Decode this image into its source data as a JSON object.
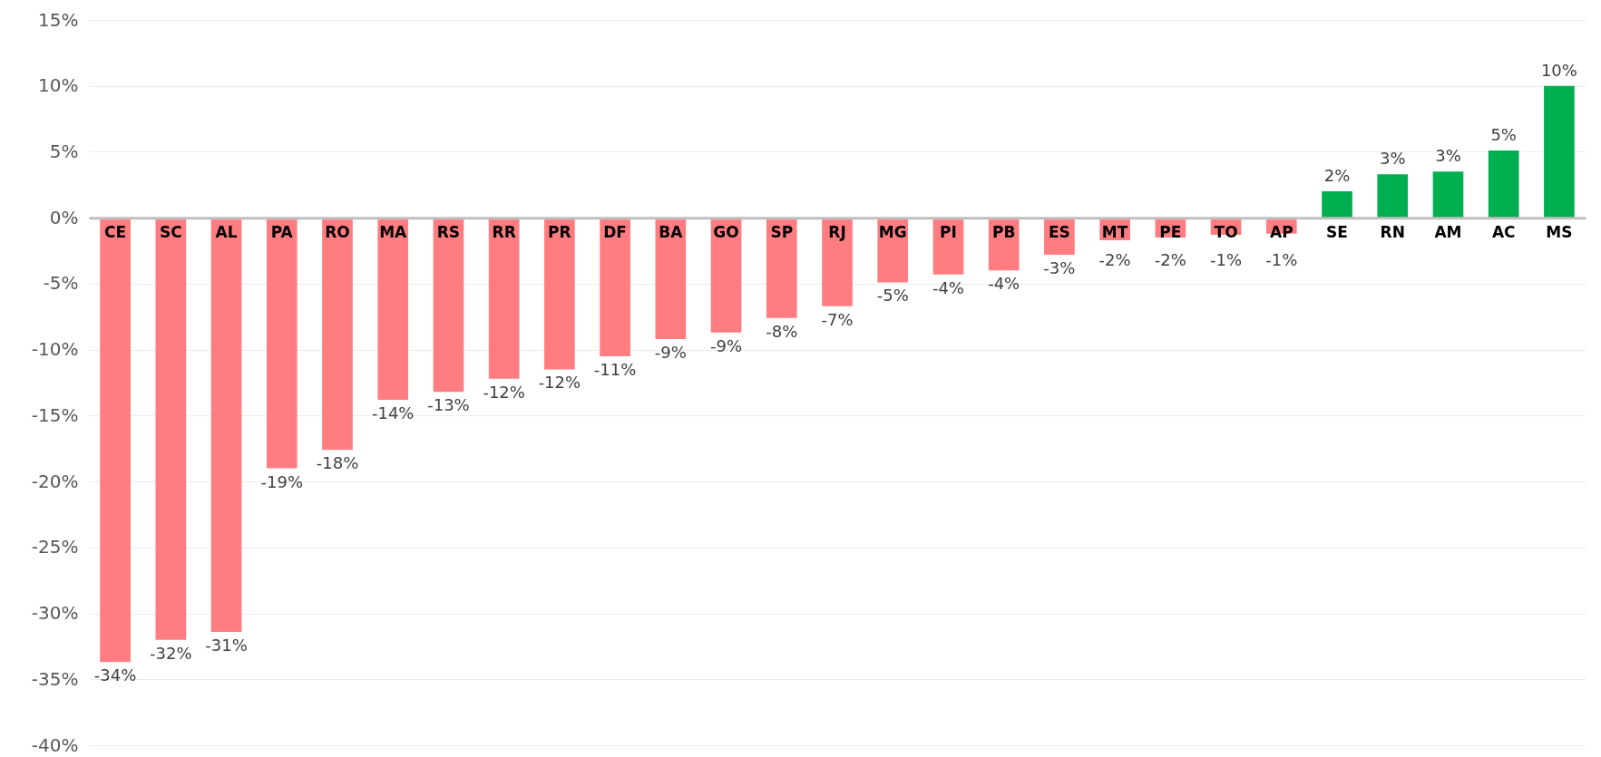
{
  "chart_data": {
    "type": "bar",
    "categories": [
      "CE",
      "SC",
      "AL",
      "PA",
      "RO",
      "MA",
      "RS",
      "RR",
      "PR",
      "DF",
      "BA",
      "GO",
      "SP",
      "RJ",
      "MG",
      "PI",
      "PB",
      "ES",
      "MT",
      "PE",
      "TO",
      "AP",
      "SE",
      "RN",
      "AM",
      "AC",
      "MS"
    ],
    "values": [
      -33.7,
      -32.0,
      -31.4,
      -19.0,
      -17.6,
      -13.8,
      -13.2,
      -12.2,
      -11.5,
      -10.5,
      -9.2,
      -8.7,
      -7.6,
      -6.7,
      -4.9,
      -4.3,
      -4.0,
      -2.8,
      -1.7,
      -1.5,
      -1.3,
      -1.2,
      2.0,
      3.3,
      3.5,
      5.1,
      10.0
    ],
    "value_labels": [
      "-34%",
      "-32%",
      "-31%",
      "-19%",
      "-18%",
      "-14%",
      "-13%",
      "-12%",
      "-12%",
      "-11%",
      "-9%",
      "-9%",
      "-8%",
      "-7%",
      "-5%",
      "-4%",
      "-4%",
      "-3%",
      "-2%",
      "-2%",
      "-1%",
      "-1%",
      "2%",
      "3%",
      "3%",
      "5%",
      "10%"
    ],
    "colors": [
      "#ff7c80",
      "#ff7c80",
      "#ff7c80",
      "#ff7c80",
      "#ff7c80",
      "#ff7c80",
      "#ff7c80",
      "#ff7c80",
      "#ff7c80",
      "#ff7c80",
      "#ff7c80",
      "#ff7c80",
      "#ff7c80",
      "#ff7c80",
      "#ff7c80",
      "#ff7c80",
      "#ff7c80",
      "#ff7c80",
      "#ff7c80",
      "#ff7c80",
      "#ff7c80",
      "#ff7c80",
      "#00b050",
      "#00b050",
      "#00b050",
      "#00b050",
      "#00b050"
    ],
    "ylim": [
      -40,
      15
    ],
    "yticks": [
      {
        "value": -40,
        "label": "-40%"
      },
      {
        "value": -35,
        "label": "-35%"
      },
      {
        "value": -30,
        "label": "-30%"
      },
      {
        "value": -25,
        "label": "-25%"
      },
      {
        "value": -20,
        "label": "-20%"
      },
      {
        "value": -15,
        "label": "-15%"
      },
      {
        "value": -10,
        "label": "-10%"
      },
      {
        "value": -5,
        "label": "-5%"
      },
      {
        "value": 0,
        "label": "0%"
      },
      {
        "value": 5,
        "label": "5%"
      },
      {
        "value": 10,
        "label": "10%"
      },
      {
        "value": 15,
        "label": "15%"
      }
    ],
    "grid": "y"
  }
}
